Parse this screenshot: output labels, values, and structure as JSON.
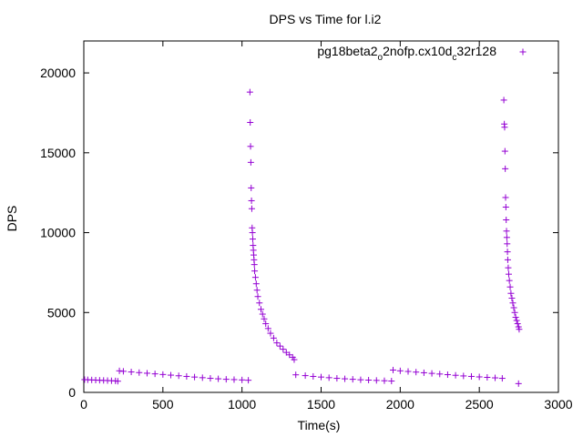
{
  "chart_data": {
    "type": "scatter",
    "title": "DPS vs Time for l.i2",
    "xlabel": "Time(s)",
    "ylabel": "DPS",
    "xlim": [
      0,
      3000
    ],
    "ylim": [
      0,
      22000
    ],
    "x_ticks": [
      0,
      500,
      1000,
      1500,
      2000,
      2500,
      3000
    ],
    "y_ticks": [
      0,
      5000,
      10000,
      15000,
      20000
    ],
    "x_tick_labels": [
      "0",
      "500",
      "1000",
      "1500",
      "2000",
      "2500",
      "3000"
    ],
    "y_tick_labels": [
      "0",
      "5000",
      "10000",
      "15000",
      "20000"
    ],
    "grid": false,
    "legend_position": "top-right",
    "marker": "plus",
    "color": "#9400d3",
    "series": [
      {
        "name_base": "pg18beta2",
        "name_sub1": "o",
        "name_mid": "2nofp.cx10d",
        "name_sub2": "c",
        "name_end": "32r128",
        "points": [
          [
            5,
            800
          ],
          [
            25,
            790
          ],
          [
            50,
            780
          ],
          [
            75,
            770
          ],
          [
            100,
            760
          ],
          [
            125,
            750
          ],
          [
            150,
            740
          ],
          [
            175,
            730
          ],
          [
            200,
            720
          ],
          [
            215,
            700
          ],
          [
            225,
            1350
          ],
          [
            250,
            1320
          ],
          [
            300,
            1280
          ],
          [
            350,
            1240
          ],
          [
            400,
            1200
          ],
          [
            450,
            1160
          ],
          [
            500,
            1120
          ],
          [
            550,
            1080
          ],
          [
            600,
            1040
          ],
          [
            650,
            1000
          ],
          [
            700,
            960
          ],
          [
            750,
            920
          ],
          [
            800,
            880
          ],
          [
            850,
            850
          ],
          [
            900,
            820
          ],
          [
            950,
            800
          ],
          [
            1000,
            780
          ],
          [
            1040,
            760
          ],
          [
            1050,
            18800
          ],
          [
            1052,
            16900
          ],
          [
            1054,
            15400
          ],
          [
            1056,
            14400
          ],
          [
            1058,
            12800
          ],
          [
            1060,
            12000
          ],
          [
            1062,
            11500
          ],
          [
            1064,
            10300
          ],
          [
            1066,
            10000
          ],
          [
            1068,
            9600
          ],
          [
            1070,
            9200
          ],
          [
            1072,
            8900
          ],
          [
            1074,
            8600
          ],
          [
            1076,
            8300
          ],
          [
            1078,
            8000
          ],
          [
            1080,
            7600
          ],
          [
            1085,
            7200
          ],
          [
            1090,
            6800
          ],
          [
            1095,
            6400
          ],
          [
            1100,
            6000
          ],
          [
            1110,
            5600
          ],
          [
            1120,
            5200
          ],
          [
            1130,
            4900
          ],
          [
            1140,
            4600
          ],
          [
            1150,
            4300
          ],
          [
            1165,
            4000
          ],
          [
            1180,
            3700
          ],
          [
            1200,
            3400
          ],
          [
            1220,
            3100
          ],
          [
            1240,
            2900
          ],
          [
            1260,
            2700
          ],
          [
            1280,
            2500
          ],
          [
            1300,
            2350
          ],
          [
            1320,
            2200
          ],
          [
            1330,
            2050
          ],
          [
            1340,
            1100
          ],
          [
            1400,
            1050
          ],
          [
            1450,
            1000
          ],
          [
            1500,
            960
          ],
          [
            1550,
            920
          ],
          [
            1600,
            880
          ],
          [
            1650,
            850
          ],
          [
            1700,
            820
          ],
          [
            1750,
            790
          ],
          [
            1800,
            770
          ],
          [
            1850,
            750
          ],
          [
            1900,
            730
          ],
          [
            1945,
            710
          ],
          [
            1955,
            1400
          ],
          [
            2000,
            1350
          ],
          [
            2050,
            1310
          ],
          [
            2100,
            1270
          ],
          [
            2150,
            1230
          ],
          [
            2200,
            1190
          ],
          [
            2250,
            1150
          ],
          [
            2300,
            1110
          ],
          [
            2350,
            1070
          ],
          [
            2400,
            1030
          ],
          [
            2450,
            1000
          ],
          [
            2500,
            970
          ],
          [
            2550,
            940
          ],
          [
            2600,
            910
          ],
          [
            2645,
            880
          ],
          [
            2655,
            18300
          ],
          [
            2658,
            16800
          ],
          [
            2660,
            16600
          ],
          [
            2662,
            15100
          ],
          [
            2664,
            14000
          ],
          [
            2666,
            12200
          ],
          [
            2668,
            11600
          ],
          [
            2670,
            10800
          ],
          [
            2672,
            10100
          ],
          [
            2674,
            9700
          ],
          [
            2676,
            9300
          ],
          [
            2678,
            8800
          ],
          [
            2680,
            8300
          ],
          [
            2683,
            7800
          ],
          [
            2686,
            7400
          ],
          [
            2690,
            7000
          ],
          [
            2695,
            6600
          ],
          [
            2700,
            6200
          ],
          [
            2706,
            5900
          ],
          [
            2712,
            5600
          ],
          [
            2718,
            5300
          ],
          [
            2724,
            5000
          ],
          [
            2730,
            4700
          ],
          [
            2736,
            4500
          ],
          [
            2742,
            4300
          ],
          [
            2748,
            4100
          ],
          [
            2752,
            3950
          ],
          [
            2748,
            550
          ]
        ]
      }
    ]
  }
}
